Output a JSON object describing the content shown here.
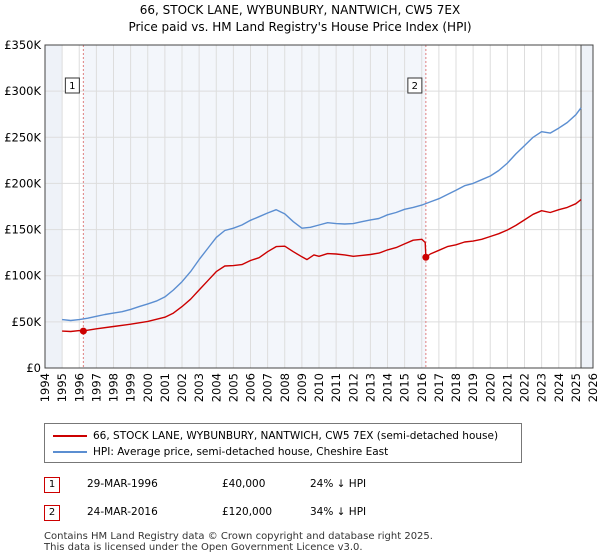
{
  "chart_data": {
    "type": "line",
    "title": "66, STOCK LANE, WYBUNBURY, NANTWICH, CW5 7EX",
    "subtitle": "Price paid vs. HM Land Registry's House Price Index (HPI)",
    "xlim": [
      1994,
      2026
    ],
    "ylim": [
      0,
      350000
    ],
    "x_ticks": [
      1994,
      1995,
      1996,
      1997,
      1998,
      1999,
      2000,
      2001,
      2002,
      2003,
      2004,
      2005,
      2006,
      2007,
      2008,
      2009,
      2010,
      2011,
      2012,
      2013,
      2014,
      2015,
      2016,
      2017,
      2018,
      2019,
      2020,
      2021,
      2022,
      2023,
      2024,
      2025,
      2026
    ],
    "y_ticks": [
      0,
      50000,
      100000,
      150000,
      200000,
      250000,
      300000,
      350000
    ],
    "y_tick_labels": [
      "£0",
      "£50K",
      "£100K",
      "£150K",
      "£200K",
      "£250K",
      "£300K",
      "£350K"
    ],
    "data_start": 1995.0,
    "data_end": 2025.3,
    "grid": true,
    "colors": {
      "property": "#cc0000",
      "hpi": "#5b8ed1",
      "grid": "#dddddd",
      "shade": "#eef2f8",
      "marker_line": "#e08080"
    },
    "series": [
      {
        "name": "66, STOCK LANE, WYBUNBURY, NANTWICH, CW5 7EX (semi-detached house)",
        "key": "property",
        "x": [
          1995.0,
          1995.5,
          1996.0,
          1996.24,
          1996.5,
          1997.0,
          1998.0,
          1999.0,
          2000.0,
          2001.0,
          2001.5,
          2002.0,
          2002.5,
          2003.0,
          2003.5,
          2004.0,
          2004.5,
          2005.0,
          2005.5,
          2006.0,
          2006.5,
          2007.0,
          2007.5,
          2008.0,
          2008.5,
          2009.0,
          2009.3,
          2009.7,
          2010.0,
          2010.5,
          2011.0,
          2011.5,
          2012.0,
          2012.5,
          2013.0,
          2013.5,
          2014.0,
          2014.5,
          2015.0,
          2015.5,
          2016.0,
          2016.2,
          2016.24,
          2016.5,
          2017.0,
          2017.5,
          2018.0,
          2018.5,
          2019.0,
          2019.5,
          2020.0,
          2020.5,
          2021.0,
          2021.5,
          2022.0,
          2022.5,
          2023.0,
          2023.5,
          2024.0,
          2024.5,
          2025.0,
          2025.3
        ],
        "y": [
          40000,
          39500,
          40500,
          40000,
          41000,
          42500,
          45000,
          47500,
          50500,
          55000,
          59500,
          66500,
          74500,
          84500,
          94500,
          104500,
          110500,
          111000,
          112000,
          116500,
          119500,
          126000,
          131500,
          132000,
          126000,
          120500,
          117500,
          122500,
          121000,
          124000,
          123500,
          122500,
          121000,
          122000,
          123000,
          124500,
          128000,
          130500,
          134500,
          138500,
          139500,
          136000,
          120000,
          123500,
          127500,
          131500,
          133500,
          136500,
          137500,
          139500,
          142500,
          145500,
          149500,
          154500,
          160500,
          166500,
          170500,
          168500,
          171500,
          174000,
          178000,
          182500
        ]
      },
      {
        "name": "HPI: Average price, semi-detached house, Cheshire East",
        "key": "hpi",
        "x": [
          1995.0,
          1995.5,
          1996.0,
          1996.5,
          1997.0,
          1997.5,
          1998.0,
          1998.5,
          1999.0,
          1999.5,
          2000.0,
          2000.5,
          2001.0,
          2001.5,
          2002.0,
          2002.5,
          2003.0,
          2003.5,
          2004.0,
          2004.5,
          2005.0,
          2005.5,
          2006.0,
          2006.5,
          2007.0,
          2007.5,
          2008.0,
          2008.5,
          2009.0,
          2009.5,
          2010.0,
          2010.5,
          2011.0,
          2011.5,
          2012.0,
          2012.5,
          2013.0,
          2013.5,
          2014.0,
          2014.5,
          2015.0,
          2015.5,
          2016.0,
          2016.5,
          2017.0,
          2017.5,
          2018.0,
          2018.5,
          2019.0,
          2019.5,
          2020.0,
          2020.5,
          2021.0,
          2021.5,
          2022.0,
          2022.5,
          2023.0,
          2023.5,
          2024.0,
          2024.5,
          2025.0,
          2025.3
        ],
        "y": [
          52500,
          51500,
          52500,
          54000,
          56000,
          58000,
          59500,
          61000,
          63500,
          66500,
          69500,
          72500,
          77000,
          84500,
          93500,
          104500,
          117500,
          129500,
          141500,
          149000,
          151500,
          155000,
          160000,
          164000,
          168000,
          171500,
          167000,
          158500,
          151500,
          152500,
          155000,
          157500,
          156500,
          156000,
          156500,
          158500,
          160500,
          162000,
          166000,
          168500,
          172000,
          174000,
          176500,
          180000,
          183500,
          188000,
          192500,
          197500,
          200000,
          204000,
          208000,
          214000,
          222000,
          232000,
          241000,
          250000,
          256000,
          254500,
          260000,
          266000,
          274500,
          282000
        ]
      }
    ],
    "annotations": [
      {
        "label": "1",
        "x": 1996.24,
        "y": 40000
      },
      {
        "label": "2",
        "x": 2016.24,
        "y": 120000
      }
    ]
  },
  "legend": {
    "property_label": "66, STOCK LANE, WYBUNBURY, NANTWICH, CW5 7EX (semi-detached house)",
    "hpi_label": "HPI: Average price, semi-detached house, Cheshire East"
  },
  "sales": [
    {
      "num": "1",
      "date": "29-MAR-1996",
      "price": "£40,000",
      "hpi": "24% ↓ HPI"
    },
    {
      "num": "2",
      "date": "24-MAR-2016",
      "price": "£120,000",
      "hpi": "34% ↓ HPI"
    }
  ],
  "footer": {
    "line1": "Contains HM Land Registry data © Crown copyright and database right 2025.",
    "line2": "This data is licensed under the Open Government Licence v3.0."
  }
}
